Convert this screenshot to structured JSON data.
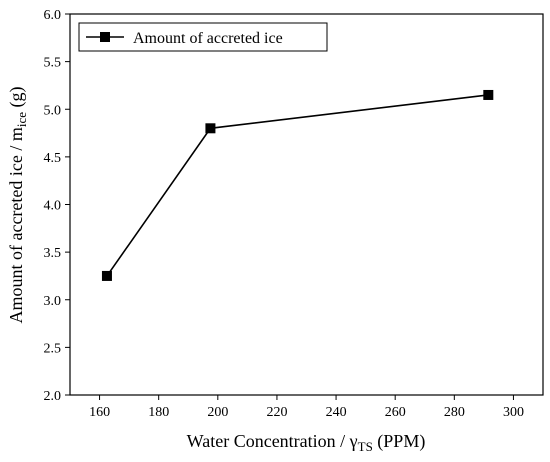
{
  "chart_data": {
    "type": "line",
    "xlabel": "Water Concentration / γ",
    "xlabel_sub": "TS",
    "xlabel_unit": " (PPM)",
    "ylabel": "Amount of accreted ice / m",
    "ylabel_sub": "ice",
    "ylabel_unit": " (g)",
    "xlim": [
      150,
      310
    ],
    "ylim": [
      2.0,
      6.0
    ],
    "xticks": [
      160,
      180,
      200,
      220,
      240,
      260,
      280,
      300
    ],
    "yticks": [
      "2.0",
      "2.5",
      "3.0",
      "3.5",
      "4.0",
      "4.5",
      "5.0",
      "5.5",
      "6.0"
    ],
    "legend_position": "top-left",
    "series": [
      {
        "name": "Amount of accreted ice",
        "color": "#000000",
        "marker": "square",
        "x": [
          162.5,
          197.5,
          291.5
        ],
        "y": [
          3.25,
          4.8,
          5.15
        ]
      }
    ]
  }
}
